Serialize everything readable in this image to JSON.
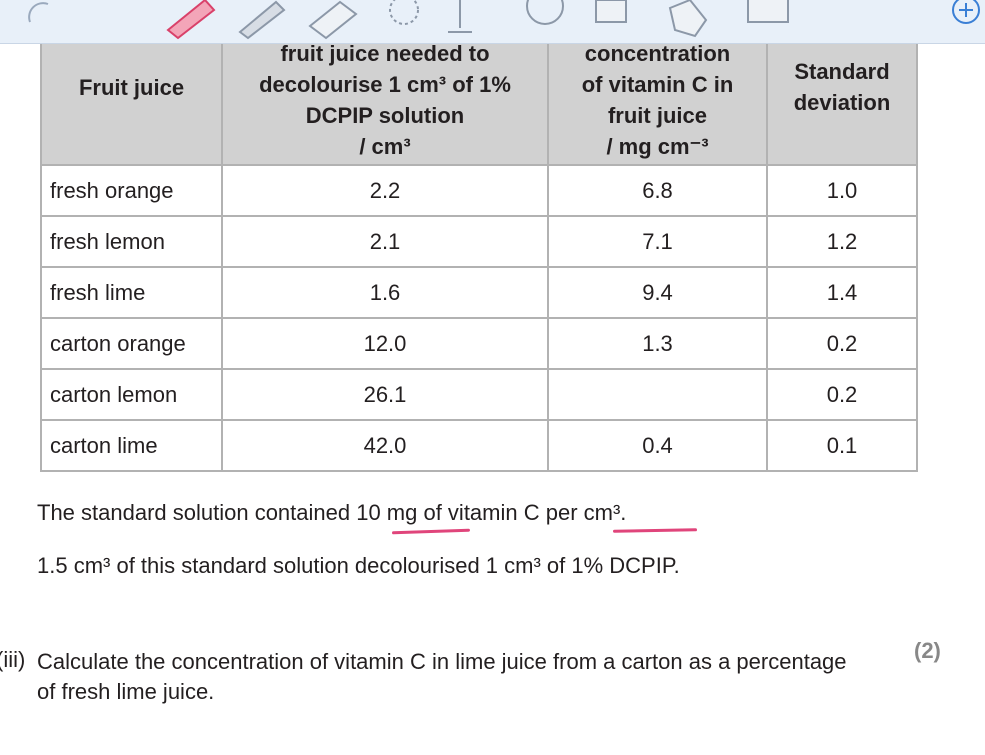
{
  "table": {
    "headers": [
      [
        "Fruit juice"
      ],
      [
        "fruit juice needed to",
        "decolourise 1 cm³ of 1%",
        "DCPIP solution",
        "/ cm³"
      ],
      [
        "concentration",
        "of vitamin C in",
        "fruit juice",
        "/ mg cm⁻³"
      ],
      [
        "Standard",
        "deviation"
      ]
    ],
    "rows": [
      [
        "fresh orange",
        "2.2",
        "6.8",
        "1.0"
      ],
      [
        "fresh lemon",
        "2.1",
        "7.1",
        "1.2"
      ],
      [
        "fresh lime",
        "1.6",
        "9.4",
        "1.4"
      ],
      [
        "carton orange",
        "12.0",
        "1.3",
        "0.2"
      ],
      [
        "carton lemon",
        "26.1",
        null,
        "0.2"
      ],
      [
        "carton lime",
        "42.0",
        "0.4",
        "0.1"
      ]
    ]
  },
  "paragraphs": [
    "The standard solution contained 10 mg of vitamin C per cm³.",
    "1.5 cm³ of this standard solution decolourised 1 cm³ of 1% DCPIP."
  ],
  "question": {
    "number": "(iii)",
    "text": "Calculate the concentration of vitamin C in lime juice from a carton as a percentage of fresh lime juice.",
    "marks": "(2)"
  }
}
